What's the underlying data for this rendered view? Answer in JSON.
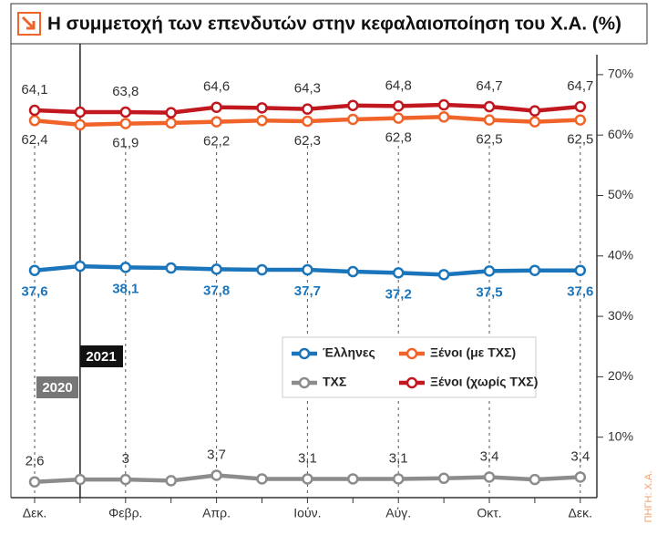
{
  "chart_data": {
    "type": "line",
    "title": "Η συμμετοχή των επενδυτών στην κεφαλαιοποίηση του Χ.Α. (%)",
    "source": "ΠΗΓΗ: Χ.Α.",
    "year_labels": [
      "2020",
      "2021"
    ],
    "categories": [
      "Δεκ.",
      null,
      "Φεβρ.",
      null,
      "Απρ.",
      null,
      "Ιούν.",
      null,
      "Αύγ.",
      null,
      "Οκτ.",
      null,
      "Δεκ."
    ],
    "series": [
      {
        "name": "Έλληνες",
        "color": "#1b75bb",
        "values": [
          37.6,
          38.3,
          38.1,
          38.0,
          37.8,
          37.7,
          37.7,
          37.4,
          37.2,
          36.9,
          37.5,
          37.6,
          37.6
        ],
        "value_labels": [
          "37,6",
          null,
          "38,1",
          null,
          "37,8",
          null,
          "37,7",
          null,
          "37,2",
          null,
          "37,5",
          null,
          "37,6"
        ]
      },
      {
        "name": "Ξένοι (με ΤΧΣ)",
        "color": "#f0642a",
        "values": [
          62.4,
          61.7,
          61.9,
          62.0,
          62.2,
          62.4,
          62.3,
          62.6,
          62.8,
          63.0,
          62.5,
          62.2,
          62.5
        ],
        "value_labels": [
          "62,4",
          null,
          "61,9",
          null,
          "62,2",
          null,
          "62,3",
          null,
          "62,8",
          null,
          "62,5",
          null,
          "62,5"
        ]
      },
      {
        "name": "ΤΧΣ",
        "color": "#8c8c8c",
        "values": [
          2.6,
          3.0,
          3.0,
          2.8,
          3.7,
          3.1,
          3.1,
          3.1,
          3.1,
          3.2,
          3.4,
          3.0,
          3.4
        ],
        "value_labels": [
          "2,6",
          null,
          "3",
          null,
          "3,7",
          null,
          "3,1",
          null,
          "3,1",
          null,
          "3,4",
          null,
          "3,4"
        ]
      },
      {
        "name": "Ξένοι (χωρίς ΤΧΣ)",
        "color": "#c1171f",
        "values": [
          64.1,
          63.8,
          63.8,
          63.7,
          64.6,
          64.5,
          64.3,
          64.9,
          64.8,
          65.0,
          64.7,
          64.0,
          64.7
        ],
        "value_labels": [
          "64,1",
          null,
          "63,8",
          null,
          "64,6",
          null,
          "64,3",
          null,
          "64,8",
          null,
          "64,7",
          null,
          "64,7"
        ]
      }
    ],
    "ylim": [
      0,
      73
    ],
    "yticks": [
      {
        "value": 10,
        "label": "10%"
      },
      {
        "value": 20,
        "label": "20%"
      },
      {
        "value": 30,
        "label": "30%"
      },
      {
        "value": 40,
        "label": "40%"
      },
      {
        "value": 50,
        "label": "50%"
      },
      {
        "value": 60,
        "label": "60%"
      },
      {
        "value": 70,
        "label": "70%"
      }
    ]
  }
}
